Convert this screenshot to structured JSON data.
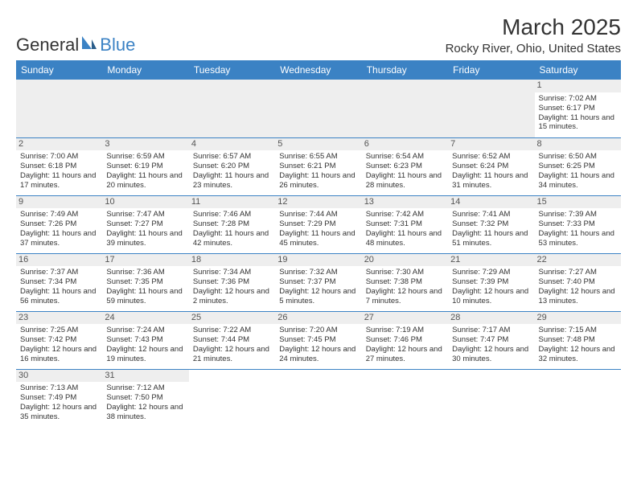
{
  "logo": {
    "part1": "General",
    "part2": "Blue"
  },
  "title": "March 2025",
  "location": "Rocky River, Ohio, United States",
  "colors": {
    "header_bg": "#3b82c4",
    "header_text": "#ffffff",
    "grid_line": "#3b82c4",
    "daynum_bg": "#eeeeee",
    "text": "#333333",
    "logo_sail": "#3b82c4"
  },
  "weekdays": [
    "Sunday",
    "Monday",
    "Tuesday",
    "Wednesday",
    "Thursday",
    "Friday",
    "Saturday"
  ],
  "weeks": [
    [
      null,
      null,
      null,
      null,
      null,
      null,
      {
        "n": "1",
        "sr": "Sunrise: 7:02 AM",
        "ss": "Sunset: 6:17 PM",
        "dl": "Daylight: 11 hours and 15 minutes."
      }
    ],
    [
      {
        "n": "2",
        "sr": "Sunrise: 7:00 AM",
        "ss": "Sunset: 6:18 PM",
        "dl": "Daylight: 11 hours and 17 minutes."
      },
      {
        "n": "3",
        "sr": "Sunrise: 6:59 AM",
        "ss": "Sunset: 6:19 PM",
        "dl": "Daylight: 11 hours and 20 minutes."
      },
      {
        "n": "4",
        "sr": "Sunrise: 6:57 AM",
        "ss": "Sunset: 6:20 PM",
        "dl": "Daylight: 11 hours and 23 minutes."
      },
      {
        "n": "5",
        "sr": "Sunrise: 6:55 AM",
        "ss": "Sunset: 6:21 PM",
        "dl": "Daylight: 11 hours and 26 minutes."
      },
      {
        "n": "6",
        "sr": "Sunrise: 6:54 AM",
        "ss": "Sunset: 6:23 PM",
        "dl": "Daylight: 11 hours and 28 minutes."
      },
      {
        "n": "7",
        "sr": "Sunrise: 6:52 AM",
        "ss": "Sunset: 6:24 PM",
        "dl": "Daylight: 11 hours and 31 minutes."
      },
      {
        "n": "8",
        "sr": "Sunrise: 6:50 AM",
        "ss": "Sunset: 6:25 PM",
        "dl": "Daylight: 11 hours and 34 minutes."
      }
    ],
    [
      {
        "n": "9",
        "sr": "Sunrise: 7:49 AM",
        "ss": "Sunset: 7:26 PM",
        "dl": "Daylight: 11 hours and 37 minutes."
      },
      {
        "n": "10",
        "sr": "Sunrise: 7:47 AM",
        "ss": "Sunset: 7:27 PM",
        "dl": "Daylight: 11 hours and 39 minutes."
      },
      {
        "n": "11",
        "sr": "Sunrise: 7:46 AM",
        "ss": "Sunset: 7:28 PM",
        "dl": "Daylight: 11 hours and 42 minutes."
      },
      {
        "n": "12",
        "sr": "Sunrise: 7:44 AM",
        "ss": "Sunset: 7:29 PM",
        "dl": "Daylight: 11 hours and 45 minutes."
      },
      {
        "n": "13",
        "sr": "Sunrise: 7:42 AM",
        "ss": "Sunset: 7:31 PM",
        "dl": "Daylight: 11 hours and 48 minutes."
      },
      {
        "n": "14",
        "sr": "Sunrise: 7:41 AM",
        "ss": "Sunset: 7:32 PM",
        "dl": "Daylight: 11 hours and 51 minutes."
      },
      {
        "n": "15",
        "sr": "Sunrise: 7:39 AM",
        "ss": "Sunset: 7:33 PM",
        "dl": "Daylight: 11 hours and 53 minutes."
      }
    ],
    [
      {
        "n": "16",
        "sr": "Sunrise: 7:37 AM",
        "ss": "Sunset: 7:34 PM",
        "dl": "Daylight: 11 hours and 56 minutes."
      },
      {
        "n": "17",
        "sr": "Sunrise: 7:36 AM",
        "ss": "Sunset: 7:35 PM",
        "dl": "Daylight: 11 hours and 59 minutes."
      },
      {
        "n": "18",
        "sr": "Sunrise: 7:34 AM",
        "ss": "Sunset: 7:36 PM",
        "dl": "Daylight: 12 hours and 2 minutes."
      },
      {
        "n": "19",
        "sr": "Sunrise: 7:32 AM",
        "ss": "Sunset: 7:37 PM",
        "dl": "Daylight: 12 hours and 5 minutes."
      },
      {
        "n": "20",
        "sr": "Sunrise: 7:30 AM",
        "ss": "Sunset: 7:38 PM",
        "dl": "Daylight: 12 hours and 7 minutes."
      },
      {
        "n": "21",
        "sr": "Sunrise: 7:29 AM",
        "ss": "Sunset: 7:39 PM",
        "dl": "Daylight: 12 hours and 10 minutes."
      },
      {
        "n": "22",
        "sr": "Sunrise: 7:27 AM",
        "ss": "Sunset: 7:40 PM",
        "dl": "Daylight: 12 hours and 13 minutes."
      }
    ],
    [
      {
        "n": "23",
        "sr": "Sunrise: 7:25 AM",
        "ss": "Sunset: 7:42 PM",
        "dl": "Daylight: 12 hours and 16 minutes."
      },
      {
        "n": "24",
        "sr": "Sunrise: 7:24 AM",
        "ss": "Sunset: 7:43 PM",
        "dl": "Daylight: 12 hours and 19 minutes."
      },
      {
        "n": "25",
        "sr": "Sunrise: 7:22 AM",
        "ss": "Sunset: 7:44 PM",
        "dl": "Daylight: 12 hours and 21 minutes."
      },
      {
        "n": "26",
        "sr": "Sunrise: 7:20 AM",
        "ss": "Sunset: 7:45 PM",
        "dl": "Daylight: 12 hours and 24 minutes."
      },
      {
        "n": "27",
        "sr": "Sunrise: 7:19 AM",
        "ss": "Sunset: 7:46 PM",
        "dl": "Daylight: 12 hours and 27 minutes."
      },
      {
        "n": "28",
        "sr": "Sunrise: 7:17 AM",
        "ss": "Sunset: 7:47 PM",
        "dl": "Daylight: 12 hours and 30 minutes."
      },
      {
        "n": "29",
        "sr": "Sunrise: 7:15 AM",
        "ss": "Sunset: 7:48 PM",
        "dl": "Daylight: 12 hours and 32 minutes."
      }
    ],
    [
      {
        "n": "30",
        "sr": "Sunrise: 7:13 AM",
        "ss": "Sunset: 7:49 PM",
        "dl": "Daylight: 12 hours and 35 minutes."
      },
      {
        "n": "31",
        "sr": "Sunrise: 7:12 AM",
        "ss": "Sunset: 7:50 PM",
        "dl": "Daylight: 12 hours and 38 minutes."
      },
      null,
      null,
      null,
      null,
      null
    ]
  ]
}
